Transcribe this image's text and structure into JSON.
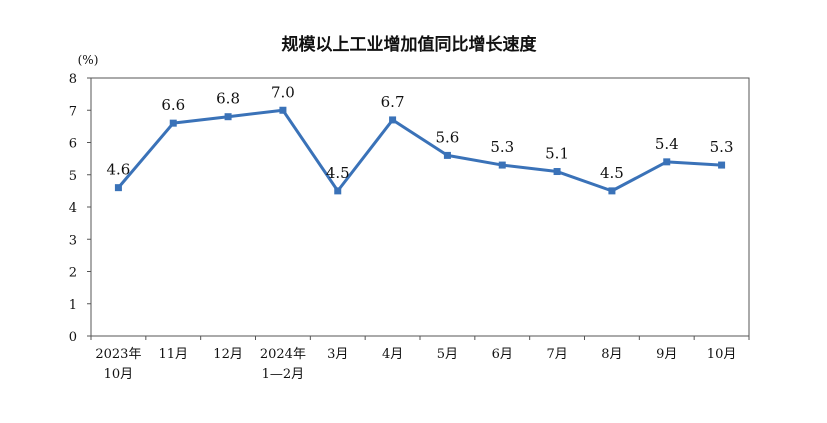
{
  "chart_data": {
    "type": "line",
    "title": "规模以上工业增加值同比增长速度",
    "ylabel": "(%)",
    "xlabel": "",
    "ylim": [
      0,
      8
    ],
    "yticks": [
      "0",
      "1",
      "2",
      "3",
      "4",
      "5",
      "6",
      "7",
      "8"
    ],
    "categories": [
      [
        "2023年",
        "10月"
      ],
      [
        "11月"
      ],
      [
        "12月"
      ],
      [
        "2024年",
        "1—2月"
      ],
      [
        "3月"
      ],
      [
        "4月"
      ],
      [
        "5月"
      ],
      [
        "6月"
      ],
      [
        "7月"
      ],
      [
        "8月"
      ],
      [
        "9月"
      ],
      [
        "10月"
      ]
    ],
    "values": [
      4.6,
      6.6,
      6.8,
      7.0,
      4.5,
      6.7,
      5.6,
      5.3,
      5.1,
      4.5,
      5.4,
      5.3
    ],
    "data_labels": [
      "4.6",
      "6.6",
      "6.8",
      "7.0",
      "4.5",
      "6.7",
      "5.6",
      "5.3",
      "5.1",
      "4.5",
      "5.4",
      "5.3"
    ],
    "grid": false,
    "legend": "none",
    "line_color": "#3a72b8"
  }
}
